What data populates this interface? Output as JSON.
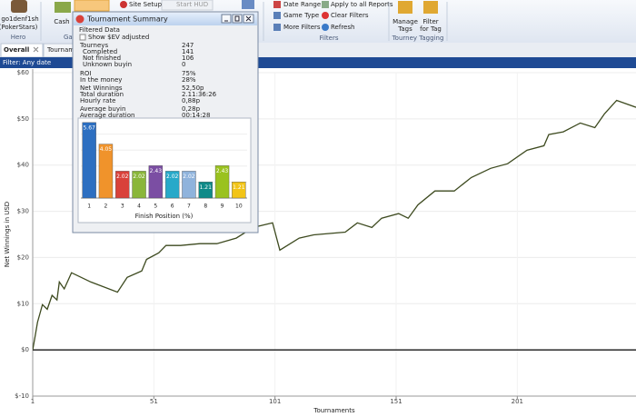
{
  "toolbar": {
    "hero_name": "go1denf1sh",
    "hero_site": "(PokerStars)",
    "hero_group": "Hero",
    "cash": "Cash",
    "games_group": "Ga",
    "site_setup": "Site Setup",
    "start_hud": "Start HUD",
    "date_range": "Date Range",
    "game_type": "Game Type",
    "more_filters": "More Filters",
    "apply_all": "Apply to all Reports",
    "clear_filters": "Clear Filters",
    "refresh": "Refresh",
    "filters_group": "Filters",
    "manage_tags": [
      "Manage",
      "Tags"
    ],
    "filter_for_tag": [
      "Filter",
      "for Tag"
    ],
    "tagging_group": "Tourney Tagging"
  },
  "tabs": [
    "Overall",
    "Tournam"
  ],
  "filter_bar": "Filter: Any date",
  "summary_window": {
    "title": "Tournament Summary",
    "section": "Filtered Data",
    "checkbox": "Show $EV adjusted",
    "stats": [
      {
        "label": "Tourneys",
        "value": "247"
      },
      {
        "label": "Completed",
        "value": "141"
      },
      {
        "label": "Not finished",
        "value": "106"
      },
      {
        "label": "Unknown buyin",
        "value": "0"
      },
      {
        "label": "ROI",
        "value": "75%"
      },
      {
        "label": "In the money",
        "value": "28%"
      },
      {
        "label": "Net Winnings",
        "value": "52,50p"
      },
      {
        "label": "Total duration",
        "value": "2.11:36:26"
      },
      {
        "label": "Hourly rate",
        "value": "0,88p"
      },
      {
        "label": "Average buyin",
        "value": "0,28p"
      },
      {
        "label": "Average duration",
        "value": "00:14:28"
      }
    ]
  },
  "chart_data": [
    {
      "type": "line",
      "x_label": "Tournaments",
      "y_label": "Net Winnings in USD",
      "color": "#3d4a1f",
      "x": [
        1,
        2,
        3,
        4,
        5,
        7,
        9,
        11,
        12,
        14,
        17,
        25,
        36,
        40,
        46,
        48,
        53,
        56,
        62,
        70,
        77,
        85,
        92,
        100,
        103,
        111,
        117,
        130,
        135,
        141,
        145,
        152,
        156,
        160,
        167,
        175,
        182,
        190,
        197,
        205,
        212,
        214,
        220,
        227,
        233,
        237,
        242,
        250
      ],
      "values": [
        0,
        3,
        6,
        7.9,
        9.8,
        8.8,
        11.8,
        10.8,
        14.7,
        13.2,
        16.7,
        14.7,
        12.5,
        15.7,
        17.1,
        19.6,
        21,
        22.6,
        22.6,
        23,
        23,
        24.2,
        26.5,
        27.5,
        21.6,
        24.2,
        24.9,
        25.5,
        27.5,
        26.5,
        28.5,
        29.5,
        28.5,
        31.4,
        34.4,
        34.4,
        37.3,
        39.3,
        40.3,
        43.2,
        44.2,
        46.6,
        47.2,
        49.1,
        48.1,
        51.1,
        54,
        52.5
      ],
      "xlim": [
        1,
        250
      ],
      "xticks": [
        1,
        51,
        101,
        151,
        201
      ],
      "ylim": [
        -10,
        60
      ],
      "yticks": [
        {
          "value": -10,
          "label": "$-10"
        },
        {
          "value": 0,
          "label": "$0"
        },
        {
          "value": 10,
          "label": "$10"
        },
        {
          "value": 20,
          "label": "$20"
        },
        {
          "value": 30,
          "label": "$30"
        },
        {
          "value": 40,
          "label": "$40"
        },
        {
          "value": 50,
          "label": "$50"
        },
        {
          "value": 60,
          "label": "$60"
        }
      ],
      "grid": true
    },
    {
      "type": "bar",
      "x_label": "Finish Position (%)",
      "categories": [
        "1",
        "2",
        "3",
        "4",
        "5",
        "6",
        "7",
        "8",
        "9",
        "10"
      ],
      "values": [
        5.67,
        4.05,
        2.02,
        2.02,
        2.43,
        2.02,
        2.02,
        1.21,
        2.43,
        1.21
      ],
      "colors": [
        "#2d6fc1",
        "#f0932b",
        "#d9413a",
        "#8ab63a",
        "#7b4ea3",
        "#27a9c9",
        "#8fb3dc",
        "#0f8a88",
        "#9ac21f",
        "#f2c417"
      ],
      "ylim": [
        0,
        6
      ]
    }
  ]
}
